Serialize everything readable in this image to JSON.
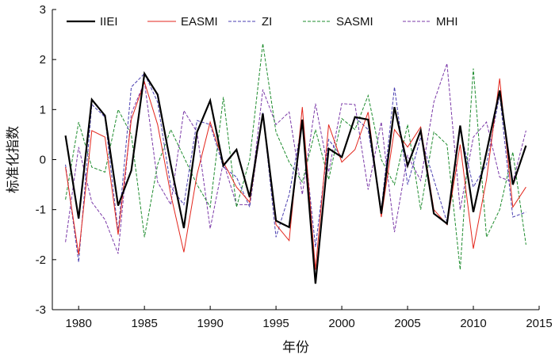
{
  "chart_data": {
    "type": "line",
    "xlabel": "年份",
    "ylabel": "标准化指数",
    "xlim": [
      1978,
      2015
    ],
    "ylim": [
      -3,
      3
    ],
    "xticks": [
      1980,
      1985,
      1990,
      1995,
      2000,
      2005,
      2010,
      2015
    ],
    "yticks": [
      -3,
      -2,
      -1,
      0,
      1,
      2,
      3
    ],
    "grid": false,
    "legend_position": "top",
    "x": [
      1979,
      1980,
      1981,
      1982,
      1983,
      1984,
      1985,
      1986,
      1987,
      1988,
      1989,
      1990,
      1991,
      1992,
      1993,
      1994,
      1995,
      1996,
      1997,
      1998,
      1999,
      2000,
      2001,
      2002,
      2003,
      2004,
      2005,
      2006,
      2007,
      2008,
      2009,
      2010,
      2011,
      2012,
      2013,
      2014
    ],
    "series": [
      {
        "name": "IIEI",
        "color": "#000000",
        "dashed": false,
        "width": 2.2,
        "values": [
          0.48,
          -1.18,
          1.2,
          0.88,
          -0.92,
          -0.22,
          1.72,
          1.3,
          -0.1,
          -1.37,
          0.55,
          1.18,
          -0.12,
          0.2,
          -0.75,
          0.92,
          -1.22,
          -1.35,
          0.8,
          -2.48,
          0.22,
          0.05,
          0.85,
          0.8,
          -1.08,
          1.05,
          -0.12,
          0.58,
          -1.08,
          -1.28,
          0.68,
          -1.05,
          0.15,
          1.38,
          -0.5,
          0.28
        ]
      },
      {
        "name": "EASMI",
        "color": "#e3261c",
        "dashed": false,
        "width": 1,
        "values": [
          -0.15,
          -1.9,
          0.58,
          0.45,
          -1.5,
          0.8,
          1.55,
          0.7,
          -0.7,
          -1.85,
          -0.3,
          0.75,
          -0.05,
          -0.55,
          -0.85,
          0.9,
          -1.3,
          -1.62,
          1.05,
          -2.2,
          0.7,
          -0.05,
          0.2,
          0.95,
          -1.15,
          0.6,
          0.25,
          0.65,
          -1.0,
          -1.3,
          0.3,
          -1.78,
          -0.4,
          1.62,
          -0.95,
          -0.55
        ]
      },
      {
        "name": "ZI",
        "color": "#4a3fb0",
        "dashed": true,
        "width": 1,
        "values": [
          -0.1,
          -2.05,
          1.1,
          0.85,
          -1.45,
          1.45,
          1.72,
          1.15,
          -0.55,
          -0.9,
          0.78,
          0.7,
          -0.15,
          -0.35,
          -0.95,
          0.95,
          -1.55,
          -0.7,
          0.75,
          -1.75,
          0.4,
          0.05,
          0.85,
          0.6,
          -1.0,
          1.45,
          -0.5,
          0.45,
          -0.4,
          -1.25,
          0.6,
          -0.55,
          -0.1,
          1.3,
          -1.15,
          -1.05
        ]
      },
      {
        "name": "SASMI",
        "color": "#1e8c2e",
        "dashed": true,
        "width": 1,
        "values": [
          -0.8,
          0.75,
          -0.15,
          -0.25,
          1.0,
          0.5,
          -1.55,
          -0.1,
          0.6,
          0.05,
          -0.5,
          -0.95,
          1.25,
          -0.95,
          0.0,
          2.32,
          0.55,
          -0.05,
          -0.45,
          0.6,
          -0.4,
          0.82,
          0.6,
          1.28,
          0.0,
          -0.5,
          0.7,
          -1.0,
          0.55,
          0.3,
          -2.2,
          1.82,
          -1.55,
          -1.0,
          0.15,
          -1.7
        ]
      },
      {
        "name": "MHI",
        "color": "#7b3aa8",
        "dashed": true,
        "width": 1,
        "values": [
          -1.65,
          0.25,
          -0.85,
          -1.2,
          -1.88,
          0.92,
          1.55,
          -0.45,
          -0.9,
          0.98,
          0.55,
          -1.38,
          -0.05,
          -0.9,
          -0.9,
          1.4,
          0.7,
          0.95,
          -0.7,
          1.12,
          -0.25,
          1.12,
          1.1,
          -0.6,
          0.75,
          -1.45,
          0.08,
          -0.42,
          1.15,
          1.92,
          -1.0,
          0.45,
          0.75,
          -0.35,
          -0.45,
          0.58
        ]
      }
    ]
  }
}
